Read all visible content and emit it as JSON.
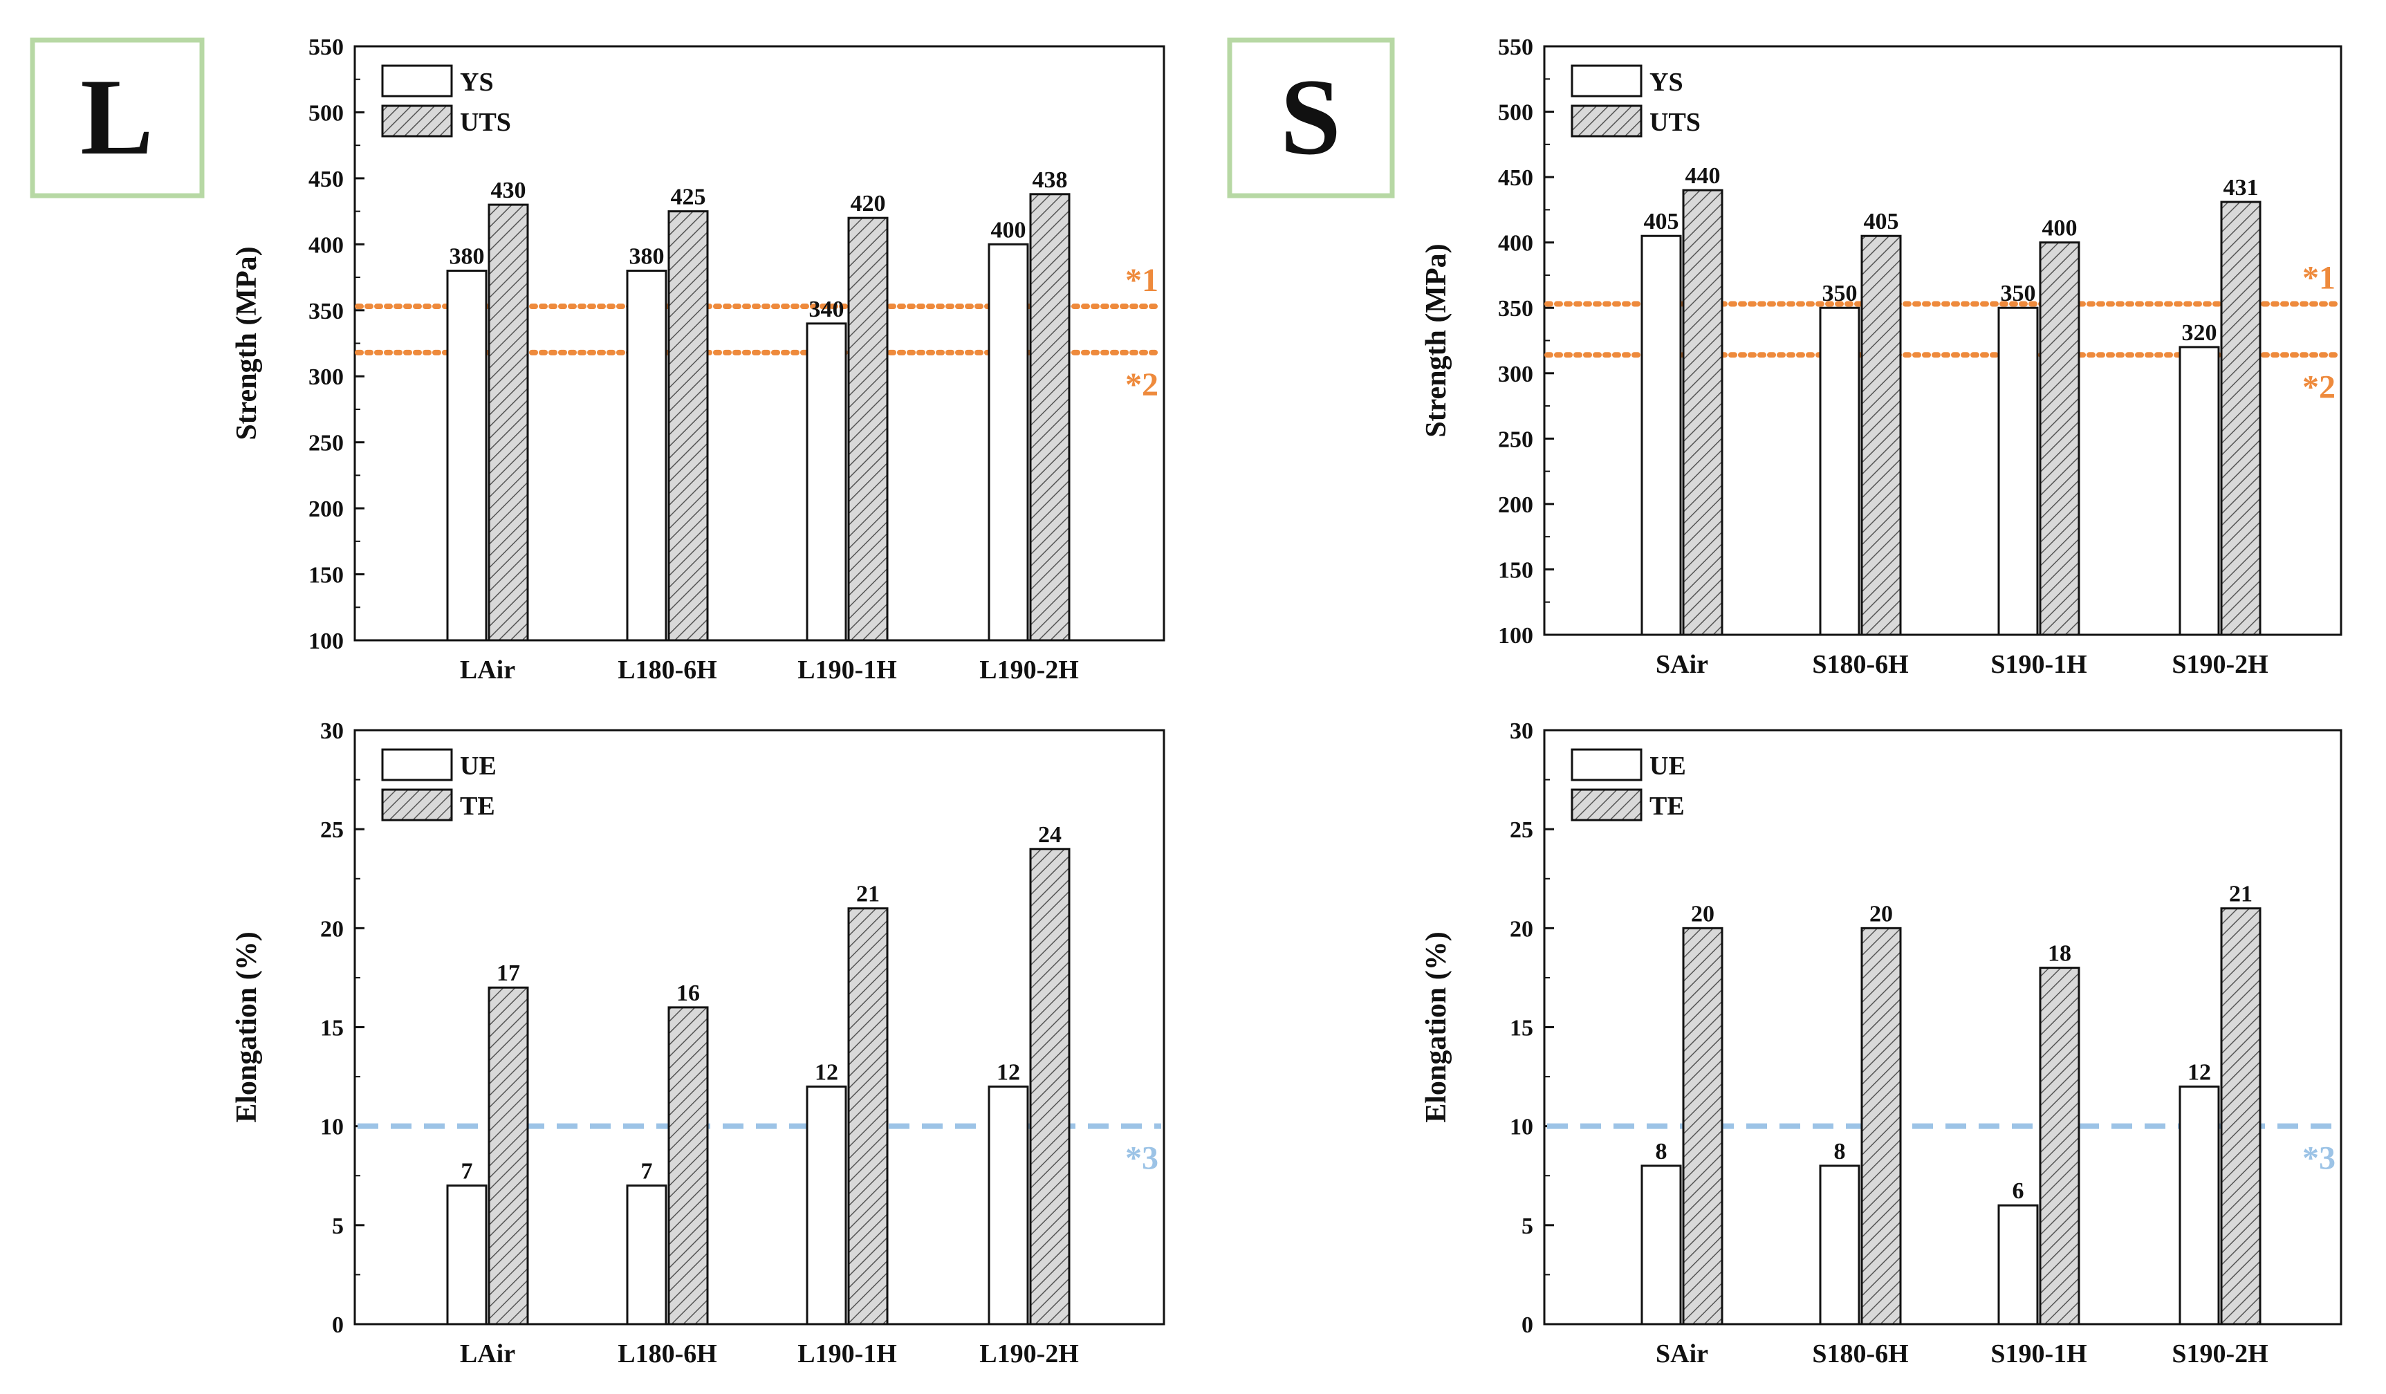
{
  "colors": {
    "ref_orange": "#ee8a3c",
    "ref_blue": "#9cc3e6",
    "box_border": "#b7d8a4",
    "axis": "#111111"
  },
  "panels": [
    {
      "label": "L",
      "column": "left"
    },
    {
      "label": "S",
      "column": "right"
    }
  ],
  "chart_data": [
    {
      "id": "L-strength",
      "type": "bar",
      "categories": [
        "LAir",
        "L180-6H",
        "L190-1H",
        "L190-2H"
      ],
      "series": [
        {
          "name": "YS",
          "pattern": "open",
          "values": [
            380,
            380,
            340,
            400
          ]
        },
        {
          "name": "UTS",
          "pattern": "hatched",
          "values": [
            430,
            425,
            420,
            438
          ]
        }
      ],
      "ylabel": "Strength (MPa)",
      "ylim": [
        100,
        550
      ],
      "yticks": [
        100,
        150,
        200,
        250,
        300,
        350,
        400,
        450,
        500,
        550
      ],
      "reference_lines": [
        {
          "label": "*1",
          "value": 353,
          "color": "orange",
          "style": "dotted",
          "label_pos": "above"
        },
        {
          "label": "*2",
          "value": 318,
          "color": "orange",
          "style": "dotted",
          "label_pos": "below"
        }
      ]
    },
    {
      "id": "S-strength",
      "type": "bar",
      "categories": [
        "SAir",
        "S180-6H",
        "S190-1H",
        "S190-2H"
      ],
      "series": [
        {
          "name": "YS",
          "pattern": "open",
          "values": [
            405,
            350,
            350,
            320
          ]
        },
        {
          "name": "UTS",
          "pattern": "hatched",
          "values": [
            440,
            405,
            400,
            431
          ]
        }
      ],
      "ylabel": "Strength (MPa)",
      "ylim": [
        100,
        550
      ],
      "yticks": [
        100,
        150,
        200,
        250,
        300,
        350,
        400,
        450,
        500,
        550
      ],
      "reference_lines": [
        {
          "label": "*1",
          "value": 353,
          "color": "orange",
          "style": "dotted",
          "label_pos": "above"
        },
        {
          "label": "*2",
          "value": 314,
          "color": "orange",
          "style": "dotted",
          "label_pos": "below"
        }
      ]
    },
    {
      "id": "L-elongation",
      "type": "bar",
      "categories": [
        "LAir",
        "L180-6H",
        "L190-1H",
        "L190-2H"
      ],
      "series": [
        {
          "name": "UE",
          "pattern": "open",
          "values": [
            7,
            7,
            12,
            12
          ]
        },
        {
          "name": "TE",
          "pattern": "hatched",
          "values": [
            17,
            16,
            21,
            24
          ]
        }
      ],
      "ylabel": "Elongation (%)",
      "ylim": [
        0,
        30
      ],
      "yticks": [
        0,
        5,
        10,
        15,
        20,
        25,
        30
      ],
      "reference_lines": [
        {
          "label": "*3",
          "value": 10,
          "color": "blue",
          "style": "dashed",
          "label_pos": "below"
        }
      ]
    },
    {
      "id": "S-elongation",
      "type": "bar",
      "categories": [
        "SAir",
        "S180-6H",
        "S190-1H",
        "S190-2H"
      ],
      "series": [
        {
          "name": "UE",
          "pattern": "open",
          "values": [
            8,
            8,
            6,
            12
          ]
        },
        {
          "name": "TE",
          "pattern": "hatched",
          "values": [
            20,
            20,
            18,
            21
          ]
        }
      ],
      "ylabel": "Elongation (%)",
      "ylim": [
        0,
        30
      ],
      "yticks": [
        0,
        5,
        10,
        15,
        20,
        25,
        30
      ],
      "reference_lines": [
        {
          "label": "*3",
          "value": 10,
          "color": "blue",
          "style": "dashed",
          "label_pos": "below"
        }
      ]
    }
  ]
}
